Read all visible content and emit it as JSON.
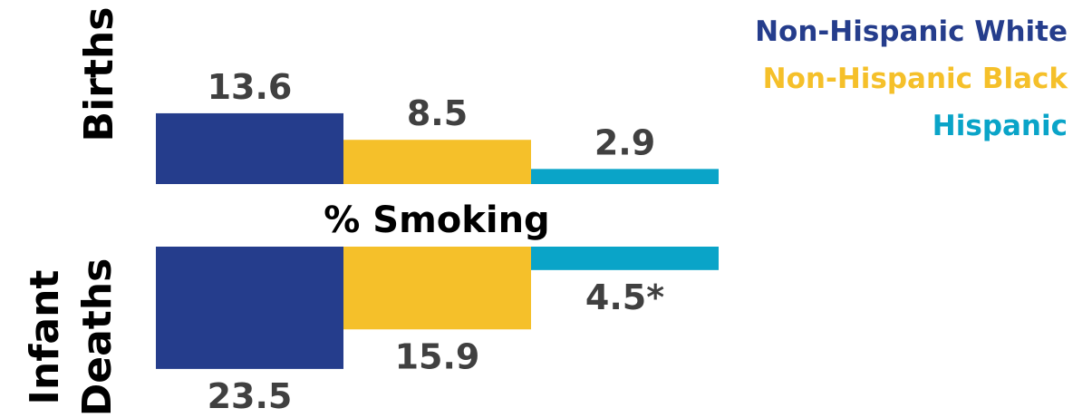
{
  "chart_data": {
    "type": "bar",
    "categories": [
      "Non-Hispanic White",
      "Non-Hispanic Black",
      "Hispanic"
    ],
    "colors": [
      "#253d8c",
      "#f5c02a",
      "#0aa4c8"
    ],
    "center_label": "% Smoking",
    "panels": [
      {
        "label_lines": [
          "Births"
        ],
        "direction": "up",
        "values": [
          13.6,
          8.5,
          2.9
        ],
        "value_labels": [
          "13.6",
          "8.5",
          "2.9"
        ]
      },
      {
        "label_lines": [
          "Infant",
          "Deaths"
        ],
        "direction": "down",
        "values": [
          23.5,
          15.9,
          4.5
        ],
        "value_labels": [
          "23.5",
          "15.9",
          "4.5*"
        ]
      }
    ]
  }
}
